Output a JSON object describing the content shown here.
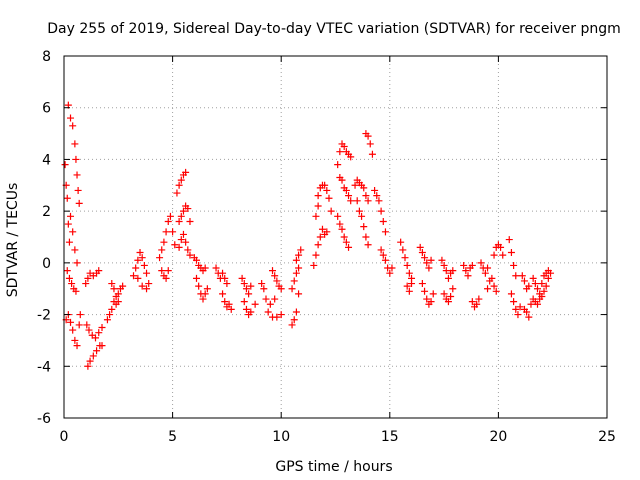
{
  "chart_data": {
    "type": "scatter",
    "title": "Day 255 of 2019, Sidereal Day-to-day VTEC variation (SDTVAR) for receiver pngm",
    "xlabel": "GPS time / hours",
    "ylabel": "SDTVAR / TECUs",
    "xlim": [
      0,
      25
    ],
    "ylim": [
      -6,
      8
    ],
    "xticks": [
      "0",
      "5",
      "10",
      "15",
      "20",
      "25"
    ],
    "yticks": [
      "-6",
      "-4",
      "-2",
      "0",
      "2",
      "4",
      "6",
      "8"
    ],
    "grid": true,
    "marker": "+",
    "series": [
      {
        "name": "SDTVAR",
        "color": "#ff0000",
        "points": [
          [
            0.05,
            3.8
          ],
          [
            0.1,
            3.0
          ],
          [
            0.15,
            2.5
          ],
          [
            0.2,
            1.5
          ],
          [
            0.25,
            0.8
          ],
          [
            0.15,
            -0.3
          ],
          [
            0.25,
            -0.6
          ],
          [
            0.35,
            -0.8
          ],
          [
            0.45,
            -1.0
          ],
          [
            0.55,
            -1.1
          ],
          [
            0.1,
            -2.2
          ],
          [
            0.2,
            -2.0
          ],
          [
            0.3,
            -2.3
          ],
          [
            0.4,
            -2.6
          ],
          [
            0.5,
            -3.0
          ],
          [
            0.6,
            -3.2
          ],
          [
            0.7,
            -2.4
          ],
          [
            0.75,
            -2.0
          ],
          [
            0.2,
            6.1
          ],
          [
            0.3,
            5.6
          ],
          [
            0.4,
            5.3
          ],
          [
            0.5,
            4.6
          ],
          [
            0.55,
            4.0
          ],
          [
            0.6,
            3.4
          ],
          [
            0.65,
            2.8
          ],
          [
            0.7,
            2.3
          ],
          [
            0.3,
            1.8
          ],
          [
            0.4,
            1.2
          ],
          [
            0.5,
            0.5
          ],
          [
            0.6,
            0.0
          ],
          [
            1.0,
            -0.8
          ],
          [
            1.1,
            -0.6
          ],
          [
            1.2,
            -0.4
          ],
          [
            1.35,
            -0.5
          ],
          [
            1.5,
            -0.4
          ],
          [
            1.6,
            -0.3
          ],
          [
            1.05,
            -2.4
          ],
          [
            1.15,
            -2.6
          ],
          [
            1.3,
            -2.8
          ],
          [
            1.45,
            -2.9
          ],
          [
            1.6,
            -2.7
          ],
          [
            1.75,
            -2.5
          ],
          [
            1.1,
            -4.0
          ],
          [
            1.2,
            -3.8
          ],
          [
            1.35,
            -3.6
          ],
          [
            1.5,
            -3.4
          ],
          [
            1.65,
            -3.2
          ],
          [
            1.75,
            -3.2
          ],
          [
            2.0,
            -2.2
          ],
          [
            2.1,
            -2.0
          ],
          [
            2.2,
            -1.8
          ],
          [
            2.3,
            -1.5
          ],
          [
            2.4,
            -1.6
          ],
          [
            2.5,
            -1.2
          ],
          [
            2.6,
            -1.0
          ],
          [
            2.7,
            -0.9
          ],
          [
            2.2,
            -0.8
          ],
          [
            2.3,
            -1.0
          ],
          [
            2.4,
            -1.3
          ],
          [
            2.5,
            -1.5
          ],
          [
            3.2,
            -0.5
          ],
          [
            3.3,
            -0.2
          ],
          [
            3.4,
            0.1
          ],
          [
            3.5,
            0.4
          ],
          [
            3.6,
            0.2
          ],
          [
            3.7,
            -0.1
          ],
          [
            3.8,
            -0.4
          ],
          [
            3.9,
            -0.8
          ],
          [
            3.4,
            -0.6
          ],
          [
            3.6,
            -0.9
          ],
          [
            3.8,
            -1.0
          ],
          [
            4.4,
            0.2
          ],
          [
            4.5,
            0.5
          ],
          [
            4.6,
            0.8
          ],
          [
            4.7,
            1.2
          ],
          [
            4.8,
            1.6
          ],
          [
            4.9,
            1.8
          ],
          [
            5.0,
            1.2
          ],
          [
            5.1,
            0.7
          ],
          [
            4.5,
            -0.3
          ],
          [
            4.6,
            -0.5
          ],
          [
            4.7,
            -0.6
          ],
          [
            4.8,
            -0.3
          ],
          [
            5.2,
            2.7
          ],
          [
            5.3,
            3.0
          ],
          [
            5.4,
            3.2
          ],
          [
            5.5,
            3.4
          ],
          [
            5.6,
            3.5
          ],
          [
            5.3,
            1.6
          ],
          [
            5.4,
            1.8
          ],
          [
            5.5,
            2.0
          ],
          [
            5.6,
            2.2
          ],
          [
            5.7,
            2.1
          ],
          [
            5.8,
            1.6
          ],
          [
            5.3,
            0.6
          ],
          [
            5.4,
            0.9
          ],
          [
            5.5,
            1.1
          ],
          [
            5.6,
            0.8
          ],
          [
            5.7,
            0.5
          ],
          [
            5.8,
            0.3
          ],
          [
            6.0,
            0.2
          ],
          [
            6.1,
            0.1
          ],
          [
            6.2,
            -0.1
          ],
          [
            6.3,
            -0.2
          ],
          [
            6.4,
            -0.3
          ],
          [
            6.5,
            -0.2
          ],
          [
            6.1,
            -0.6
          ],
          [
            6.2,
            -0.9
          ],
          [
            6.3,
            -1.2
          ],
          [
            6.4,
            -1.4
          ],
          [
            6.5,
            -1.2
          ],
          [
            6.6,
            -1.0
          ],
          [
            7.0,
            -0.2
          ],
          [
            7.1,
            -0.4
          ],
          [
            7.2,
            -0.6
          ],
          [
            7.3,
            -0.4
          ],
          [
            7.4,
            -0.6
          ],
          [
            7.5,
            -0.8
          ],
          [
            7.3,
            -1.2
          ],
          [
            7.4,
            -1.5
          ],
          [
            7.5,
            -1.7
          ],
          [
            7.6,
            -1.6
          ],
          [
            7.7,
            -1.8
          ],
          [
            8.2,
            -0.6
          ],
          [
            8.3,
            -0.8
          ],
          [
            8.4,
            -1.0
          ],
          [
            8.5,
            -1.2
          ],
          [
            8.6,
            -0.9
          ],
          [
            8.3,
            -1.5
          ],
          [
            8.4,
            -1.8
          ],
          [
            8.5,
            -2.0
          ],
          [
            8.6,
            -1.9
          ],
          [
            8.8,
            -1.6
          ],
          [
            9.1,
            -0.8
          ],
          [
            9.2,
            -1.0
          ],
          [
            9.3,
            -1.4
          ],
          [
            9.5,
            -1.6
          ],
          [
            9.7,
            -1.4
          ],
          [
            9.6,
            -0.3
          ],
          [
            9.7,
            -0.5
          ],
          [
            9.8,
            -0.7
          ],
          [
            9.9,
            -0.9
          ],
          [
            10.0,
            -1.0
          ],
          [
            9.4,
            -1.9
          ],
          [
            9.6,
            -2.1
          ],
          [
            9.8,
            -2.1
          ],
          [
            10.0,
            -2.0
          ],
          [
            10.5,
            -2.4
          ],
          [
            10.6,
            -2.2
          ],
          [
            10.7,
            -1.9
          ],
          [
            10.8,
            -1.2
          ],
          [
            10.5,
            -1.0
          ],
          [
            10.6,
            -0.7
          ],
          [
            10.7,
            -0.4
          ],
          [
            10.8,
            -0.2
          ],
          [
            10.7,
            0.1
          ],
          [
            10.8,
            0.3
          ],
          [
            10.9,
            0.5
          ],
          [
            11.5,
            -0.1
          ],
          [
            11.6,
            0.3
          ],
          [
            11.7,
            0.7
          ],
          [
            11.8,
            1.0
          ],
          [
            11.9,
            1.3
          ],
          [
            12.0,
            1.1
          ],
          [
            12.1,
            1.2
          ],
          [
            11.7,
            2.6
          ],
          [
            11.8,
            2.9
          ],
          [
            11.9,
            3.0
          ],
          [
            12.0,
            3.0
          ],
          [
            12.1,
            2.8
          ],
          [
            12.2,
            2.5
          ],
          [
            11.6,
            1.8
          ],
          [
            11.7,
            2.2
          ],
          [
            12.3,
            2.0
          ],
          [
            12.6,
            3.8
          ],
          [
            12.7,
            4.3
          ],
          [
            12.8,
            4.6
          ],
          [
            12.9,
            4.5
          ],
          [
            13.0,
            4.3
          ],
          [
            13.1,
            4.2
          ],
          [
            13.2,
            4.1
          ],
          [
            12.7,
            3.3
          ],
          [
            12.8,
            3.2
          ],
          [
            12.9,
            2.9
          ],
          [
            13.0,
            2.8
          ],
          [
            13.1,
            2.6
          ],
          [
            13.2,
            2.4
          ],
          [
            12.6,
            1.8
          ],
          [
            12.7,
            1.5
          ],
          [
            12.8,
            1.3
          ],
          [
            12.9,
            1.0
          ],
          [
            13.0,
            0.8
          ],
          [
            13.1,
            0.6
          ],
          [
            13.4,
            3.0
          ],
          [
            13.5,
            3.2
          ],
          [
            13.6,
            3.1
          ],
          [
            13.7,
            3.0
          ],
          [
            13.8,
            2.9
          ],
          [
            13.9,
            2.6
          ],
          [
            14.0,
            2.4
          ],
          [
            13.5,
            2.4
          ],
          [
            13.6,
            2.0
          ],
          [
            13.7,
            1.8
          ],
          [
            13.8,
            1.4
          ],
          [
            13.9,
            1.0
          ],
          [
            14.0,
            0.7
          ],
          [
            13.9,
            5.0
          ],
          [
            14.0,
            4.9
          ],
          [
            14.1,
            4.6
          ],
          [
            14.2,
            4.2
          ],
          [
            14.3,
            2.8
          ],
          [
            14.4,
            2.6
          ],
          [
            14.5,
            2.4
          ],
          [
            14.6,
            2.0
          ],
          [
            14.7,
            1.6
          ],
          [
            14.8,
            1.2
          ],
          [
            14.6,
            0.5
          ],
          [
            14.7,
            0.3
          ],
          [
            14.8,
            0.1
          ],
          [
            14.9,
            -0.2
          ],
          [
            15.0,
            -0.4
          ],
          [
            15.1,
            -0.2
          ],
          [
            15.5,
            0.8
          ],
          [
            15.6,
            0.5
          ],
          [
            15.7,
            0.2
          ],
          [
            15.8,
            -0.1
          ],
          [
            15.9,
            -0.4
          ],
          [
            16.0,
            -0.6
          ],
          [
            15.8,
            -0.9
          ],
          [
            15.9,
            -1.1
          ],
          [
            16.0,
            -0.8
          ],
          [
            16.4,
            0.6
          ],
          [
            16.5,
            0.4
          ],
          [
            16.6,
            0.2
          ],
          [
            16.7,
            0.0
          ],
          [
            16.8,
            -0.2
          ],
          [
            16.9,
            0.1
          ],
          [
            16.5,
            -0.8
          ],
          [
            16.6,
            -1.1
          ],
          [
            16.7,
            -1.4
          ],
          [
            16.8,
            -1.6
          ],
          [
            16.9,
            -1.5
          ],
          [
            17.0,
            -1.2
          ],
          [
            17.4,
            0.1
          ],
          [
            17.5,
            -0.1
          ],
          [
            17.6,
            -0.3
          ],
          [
            17.7,
            -0.6
          ],
          [
            17.8,
            -0.4
          ],
          [
            17.9,
            -0.3
          ],
          [
            17.5,
            -1.2
          ],
          [
            17.6,
            -1.4
          ],
          [
            17.7,
            -1.5
          ],
          [
            17.8,
            -1.3
          ],
          [
            17.9,
            -1.0
          ],
          [
            18.4,
            -0.1
          ],
          [
            18.5,
            -0.3
          ],
          [
            18.6,
            -0.5
          ],
          [
            18.7,
            -0.2
          ],
          [
            18.8,
            -0.1
          ],
          [
            18.8,
            -1.5
          ],
          [
            18.9,
            -1.7
          ],
          [
            19.0,
            -1.6
          ],
          [
            19.1,
            -1.4
          ],
          [
            19.2,
            0.0
          ],
          [
            19.3,
            -0.2
          ],
          [
            19.4,
            -0.4
          ],
          [
            19.5,
            -0.2
          ],
          [
            19.5,
            -1.0
          ],
          [
            19.6,
            -0.7
          ],
          [
            19.7,
            -0.6
          ],
          [
            19.8,
            -0.9
          ],
          [
            19.9,
            -1.1
          ],
          [
            19.8,
            0.3
          ],
          [
            19.9,
            0.6
          ],
          [
            20.0,
            0.7
          ],
          [
            20.1,
            0.6
          ],
          [
            20.2,
            0.3
          ],
          [
            20.5,
            0.9
          ],
          [
            20.6,
            0.4
          ],
          [
            20.7,
            -0.1
          ],
          [
            20.8,
            -0.5
          ],
          [
            20.6,
            -1.2
          ],
          [
            20.7,
            -1.5
          ],
          [
            20.8,
            -1.8
          ],
          [
            20.9,
            -2.0
          ],
          [
            21.0,
            -1.7
          ],
          [
            21.1,
            -0.5
          ],
          [
            21.2,
            -0.7
          ],
          [
            21.3,
            -1.0
          ],
          [
            21.4,
            -0.9
          ],
          [
            21.2,
            -1.8
          ],
          [
            21.3,
            -1.9
          ],
          [
            21.4,
            -2.1
          ],
          [
            21.5,
            -1.6
          ],
          [
            21.6,
            -0.6
          ],
          [
            21.7,
            -0.8
          ],
          [
            21.8,
            -1.0
          ],
          [
            21.9,
            -1.2
          ],
          [
            22.0,
            -1.3
          ],
          [
            22.1,
            -1.1
          ],
          [
            22.2,
            -0.9
          ],
          [
            22.3,
            -0.6
          ],
          [
            22.4,
            -0.4
          ],
          [
            21.6,
            -1.4
          ],
          [
            21.7,
            -1.5
          ],
          [
            21.8,
            -1.6
          ],
          [
            21.9,
            -1.4
          ],
          [
            22.0,
            -0.8
          ],
          [
            22.1,
            -0.5
          ],
          [
            22.2,
            -0.4
          ],
          [
            22.3,
            -0.3
          ]
        ]
      }
    ]
  }
}
